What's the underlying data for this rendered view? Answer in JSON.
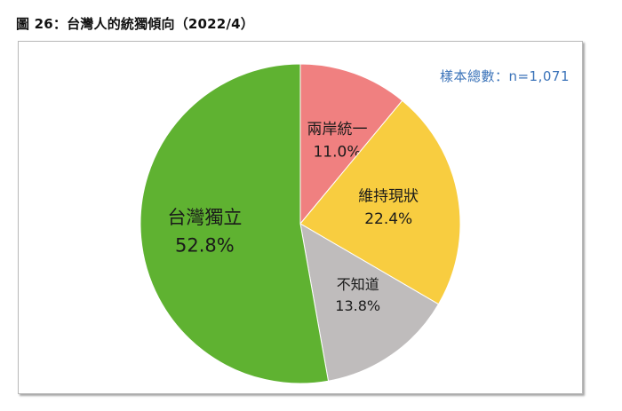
{
  "figure_title": "圖 26：台灣人的統獨傾向（2022/4）",
  "sample_note": "樣本總數：n=1,071",
  "chart_data": {
    "type": "pie",
    "title": "",
    "slices": [
      {
        "label": "兩岸統一",
        "value": 11.0,
        "display": "11.0%",
        "color": "#f08080"
      },
      {
        "label": "維持現狀",
        "value": 22.4,
        "display": "22.4%",
        "color": "#f8cd40"
      },
      {
        "label": "不知道",
        "value": 13.8,
        "display": "13.8%",
        "color": "#bfbcbc"
      },
      {
        "label": "台灣獨立",
        "value": 52.8,
        "display": "52.8%",
        "color": "#5fb231"
      }
    ],
    "start": "12 o'clock",
    "direction": "clockwise",
    "legend": "none"
  }
}
